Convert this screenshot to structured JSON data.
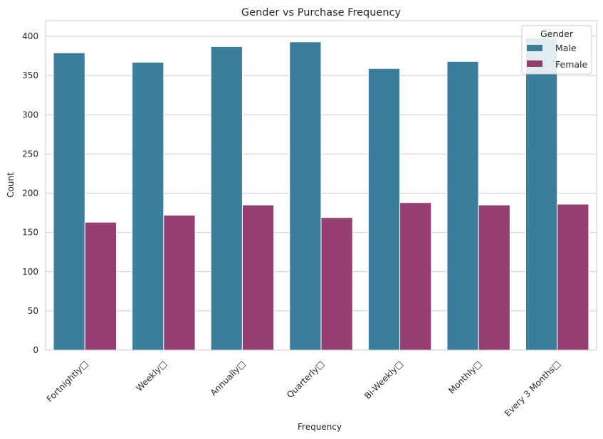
{
  "chart_data": {
    "type": "bar",
    "title": "Gender vs Purchase Frequency",
    "xlabel": "Frequency",
    "ylabel": "Count",
    "categories": [
      "Fortnightly□",
      "Weekly□",
      "Annually□",
      "Quarterly□",
      "Bi-Weekly□",
      "Monthly□",
      "Every 3 Months□"
    ],
    "series": [
      {
        "name": "Male",
        "color": "#3a7e9b",
        "values": [
          379,
          367,
          387,
          393,
          359,
          368,
          398
        ]
      },
      {
        "name": "Female",
        "color": "#963e6f",
        "values": [
          163,
          172,
          185,
          169,
          188,
          185,
          186
        ]
      }
    ],
    "ylim": [
      0,
      420
    ],
    "yticks": [
      0,
      50,
      100,
      150,
      200,
      250,
      300,
      350,
      400
    ],
    "grid": "horizontal",
    "legend": {
      "title": "Gender",
      "placement": "top-right"
    }
  }
}
